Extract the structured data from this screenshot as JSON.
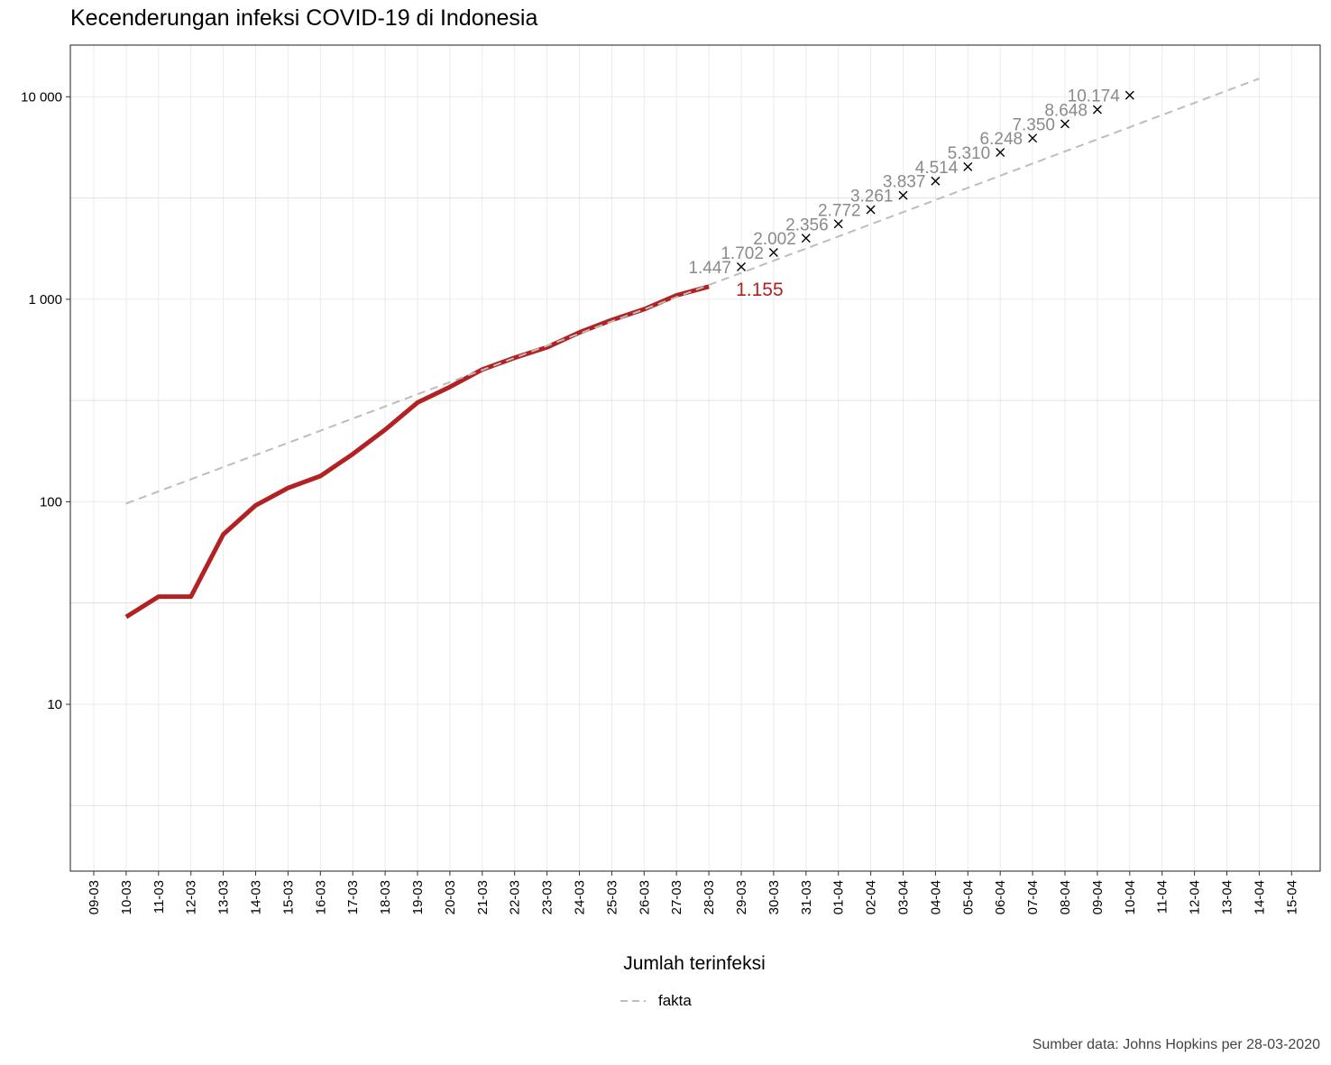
{
  "chart_data": {
    "type": "line",
    "title": "Kecenderungan infeksi COVID-19 di Indonesia",
    "xlabel": "",
    "ylabel": "",
    "y_scale": "log10",
    "ylim": [
      1.5,
      18000
    ],
    "y_ticks": [
      {
        "value": 10,
        "label": "10"
      },
      {
        "value": 100,
        "label": "100"
      },
      {
        "value": 1000,
        "label": "1 000"
      },
      {
        "value": 10000,
        "label": "10 000"
      }
    ],
    "x_categories": [
      "09-03",
      "10-03",
      "11-03",
      "12-03",
      "13-03",
      "14-03",
      "15-03",
      "16-03",
      "17-03",
      "18-03",
      "19-03",
      "20-03",
      "21-03",
      "22-03",
      "23-03",
      "24-03",
      "25-03",
      "26-03",
      "27-03",
      "28-03",
      "29-03",
      "30-03",
      "31-03",
      "01-04",
      "02-04",
      "03-04",
      "04-04",
      "05-04",
      "06-04",
      "07-04",
      "08-04",
      "09-04",
      "10-04",
      "11-04",
      "12-04",
      "13-04",
      "14-04",
      "15-04"
    ],
    "grid": true,
    "series": [
      {
        "name": "",
        "style": "solid",
        "color": "#b22222",
        "x": [
          "10-03",
          "11-03",
          "12-03",
          "13-03",
          "14-03",
          "15-03",
          "16-03",
          "17-03",
          "18-03",
          "19-03",
          "20-03",
          "21-03",
          "22-03",
          "23-03",
          "24-03",
          "25-03",
          "26-03",
          "27-03",
          "28-03"
        ],
        "values": [
          27,
          34,
          34,
          69,
          96,
          117,
          134,
          172,
          227,
          309,
          369,
          450,
          514,
          579,
          686,
          790,
          893,
          1046,
          1155
        ],
        "end_label": "1.155"
      },
      {
        "name": "fakta",
        "style": "dashed",
        "color": "#bdbdbd",
        "x": [
          "10-03",
          "14-04"
        ],
        "values": [
          98,
          12300
        ]
      },
      {
        "name": "",
        "style": "points",
        "marker": "x",
        "color": "#000000",
        "x": [
          "29-03",
          "30-03",
          "31-03",
          "01-04",
          "02-04",
          "03-04",
          "04-04",
          "05-04",
          "06-04",
          "07-04",
          "08-04",
          "09-04",
          "10-04"
        ],
        "values": [
          1447,
          1702,
          2002,
          2356,
          2772,
          3261,
          3837,
          4514,
          5310,
          6248,
          7350,
          8648,
          10174
        ],
        "labels": [
          "1.447",
          "1.702",
          "2.002",
          "2.356",
          "2.772",
          "3.261",
          "3.837",
          "4.514",
          "5.310",
          "6.248",
          "7.350",
          "8.648",
          "10.174"
        ]
      }
    ],
    "legend": {
      "title": "Jumlah terinfeksi",
      "placement": "bottom",
      "items": [
        {
          "label": "fakta",
          "style": "dashed",
          "color": "#bdbdbd"
        }
      ]
    },
    "caption": "Sumber data: Johns Hopkins per 28-03-2020"
  }
}
